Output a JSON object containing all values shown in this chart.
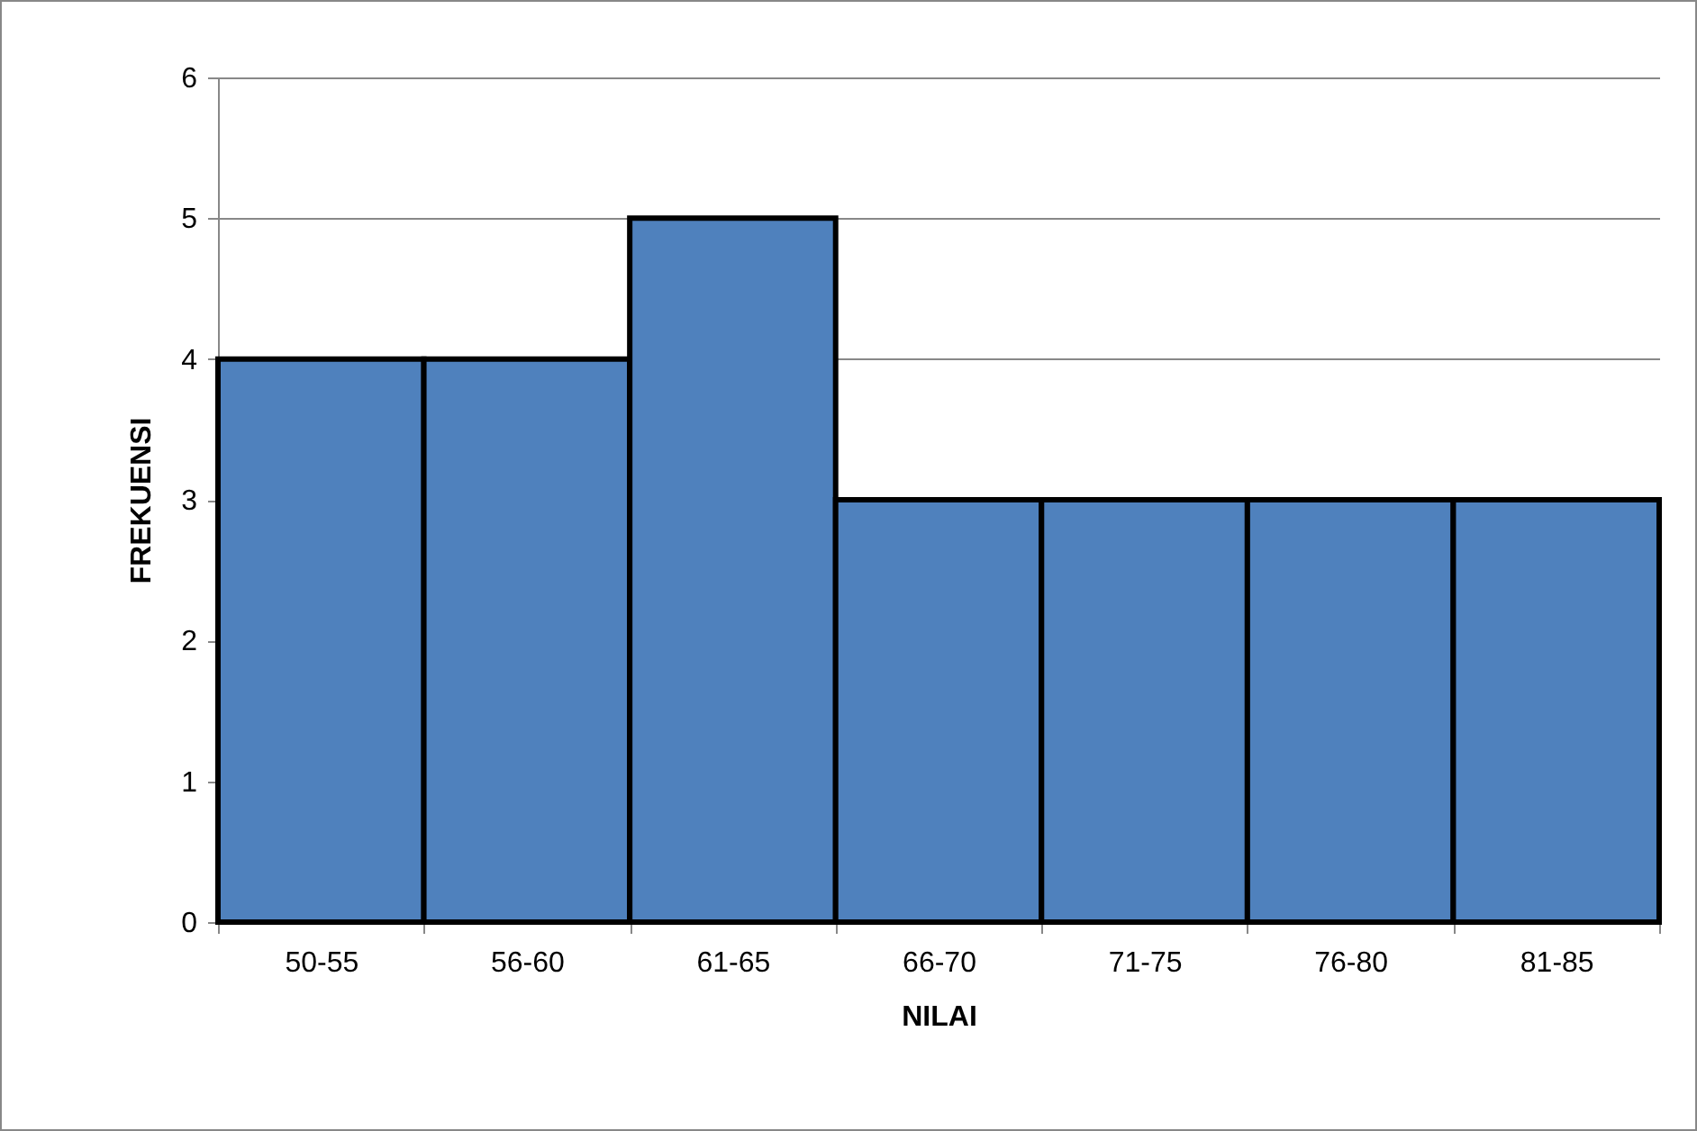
{
  "chart_data": {
    "type": "bar",
    "xlabel": "NILAI",
    "ylabel": "FREKUENSI",
    "categories": [
      "50-55",
      "56-60",
      "61-65",
      "66-70",
      "71-75",
      "76-80",
      "81-85"
    ],
    "values": [
      4,
      4,
      5,
      3,
      3,
      3,
      3
    ],
    "color": "#4f81bd",
    "ylim": [
      0,
      6
    ],
    "yticks": [
      0,
      1,
      2,
      3,
      4,
      5,
      6
    ],
    "grid": "y"
  }
}
